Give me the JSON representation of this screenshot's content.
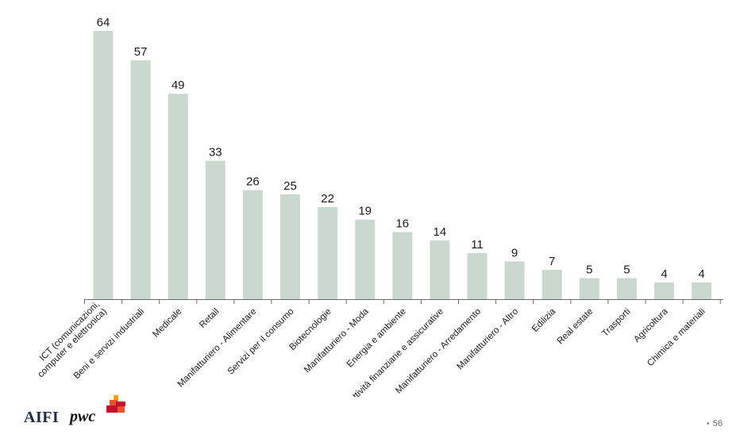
{
  "chart_data": {
    "type": "bar",
    "categories": [
      "ICT (comunicazioni, computer e elettronica)",
      "Beni e servizi industriali",
      "Medicale",
      "Retail",
      "Manifatturiero - Alimentare",
      "Servizi per il consumo",
      "Biotecnologie",
      "Manifatturiero - Moda",
      "Energia e ambiente",
      "Attività finanziarie e assicurative",
      "Manifatturiero - Arredamento",
      "Manifatturiero - Altro",
      "Edilizia",
      "Real estate",
      "Trasporti",
      "Agricoltura",
      "Chimica e materiali"
    ],
    "category_lines": [
      [
        "ICT (comunicazioni,",
        "computer e elettronica)"
      ],
      [
        "Beni e servizi industriali"
      ],
      [
        "Medicale"
      ],
      [
        "Retail"
      ],
      [
        "Manifatturiero - Alimentare"
      ],
      [
        "Servizi per il consumo"
      ],
      [
        "Biotecnologie"
      ],
      [
        "Manifatturiero - Moda"
      ],
      [
        "Energia e ambiente"
      ],
      [
        "Attività finanziarie e assicurative"
      ],
      [
        "Manifatturiero - Arredamento"
      ],
      [
        "Manifatturiero - Altro"
      ],
      [
        "Edilizia"
      ],
      [
        "Real estate"
      ],
      [
        "Trasporti"
      ],
      [
        "Agricoltura"
      ],
      [
        "Chimica e materiali"
      ]
    ],
    "values": [
      64,
      57,
      49,
      33,
      26,
      25,
      22,
      19,
      16,
      14,
      11,
      9,
      7,
      5,
      5,
      4,
      4
    ],
    "title": "",
    "xlabel": "",
    "ylabel": "",
    "ylim": [
      0,
      64
    ],
    "grid": false,
    "bar_color": "#cbd8cf"
  },
  "footer": {
    "logo_aifi": "AIFI",
    "logo_pwc": "pwc",
    "page_bullet": "•",
    "page_number": "56"
  },
  "colors": {
    "pwc_mark_dark": "#c8102e",
    "pwc_mark_mid": "#e4572e",
    "pwc_mark_light": "#f4a100"
  }
}
